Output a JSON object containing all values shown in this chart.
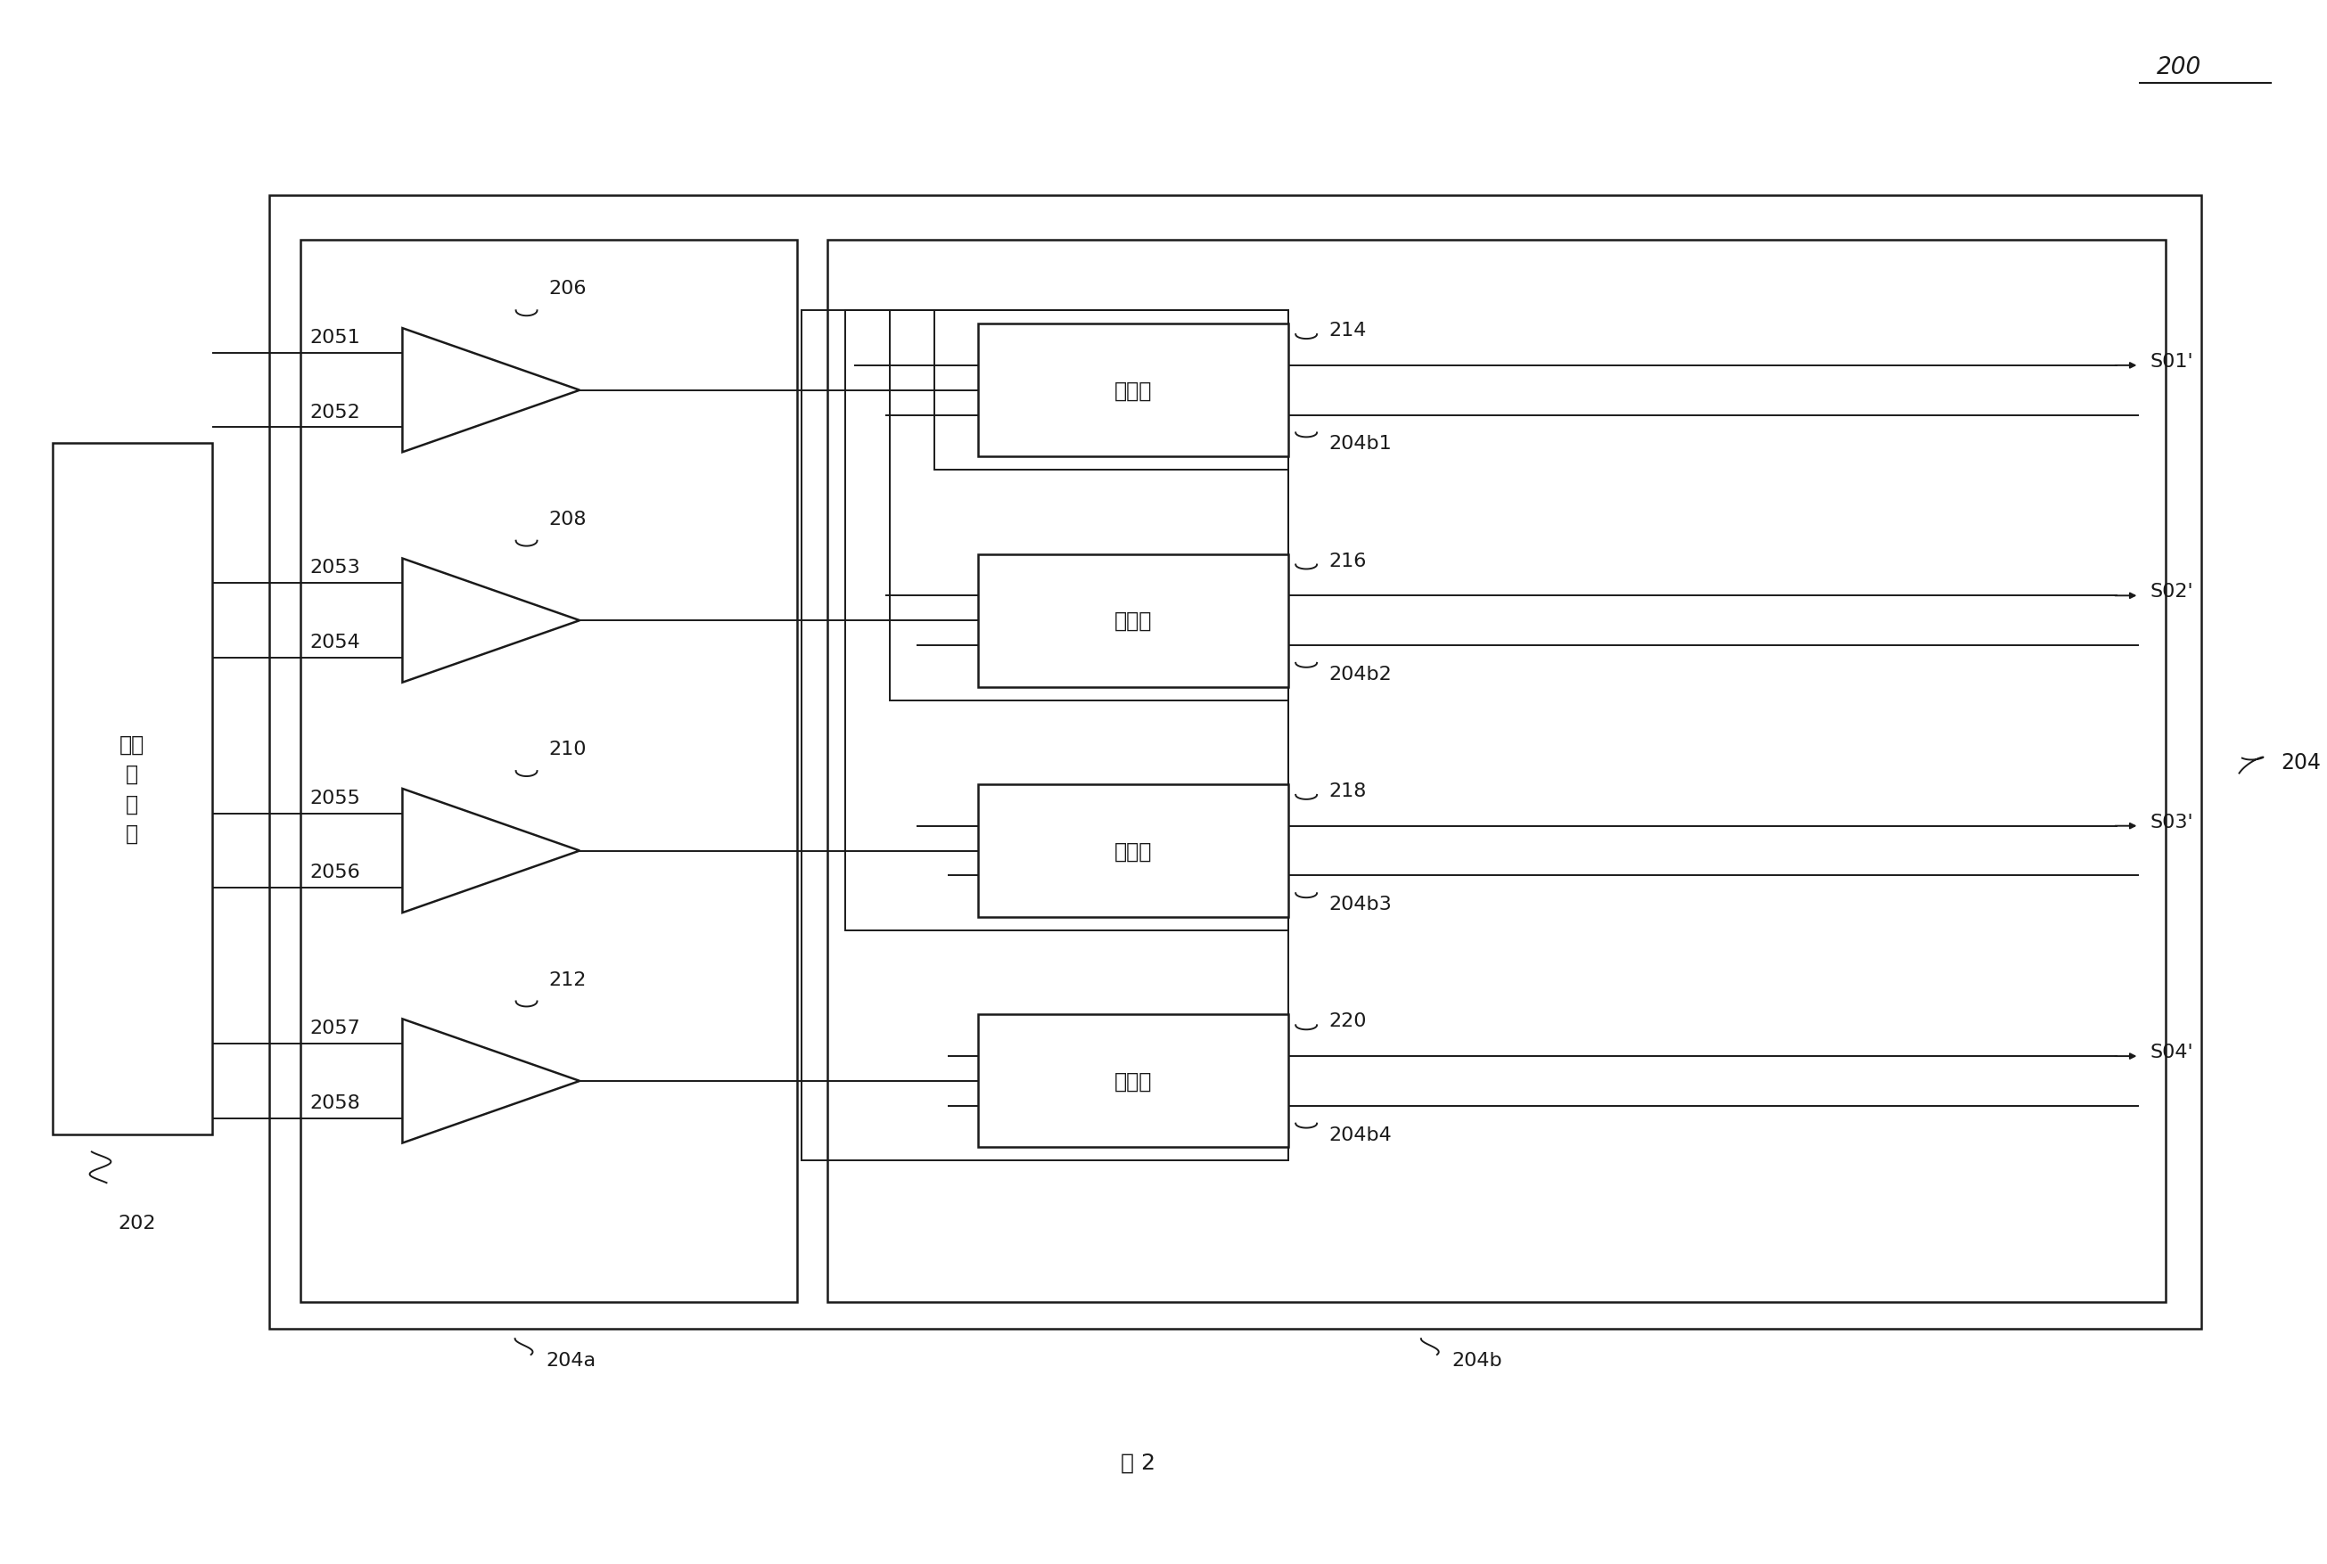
{
  "bg_color": "#ffffff",
  "line_color": "#1a1a1a",
  "title_ref": "200",
  "figure_label": "图 2",
  "controller_label": "时序\n控\n制\n器",
  "controller_ref": "202",
  "outer_box_ref": "204",
  "left_box_ref": "204a",
  "right_box_ref": "204b",
  "input_labels": [
    "2051",
    "2052",
    "2053",
    "2054",
    "2055",
    "2056",
    "2057",
    "2058"
  ],
  "buffer_labels": [
    "206",
    "208",
    "210",
    "212"
  ],
  "register_labels": [
    "寄存器",
    "寄存器",
    "寄存器",
    "寄存器"
  ],
  "register_refs": [
    "214",
    "216",
    "218",
    "220"
  ],
  "output_labels": [
    "S01'",
    "S02'",
    "S03'",
    "S04'"
  ],
  "output_sub_refs": [
    "204b1",
    "204b2",
    "204b3",
    "204b4"
  ],
  "font_size_label": 16,
  "font_size_ref": 16,
  "font_size_chinese": 17,
  "font_size_title": 18
}
